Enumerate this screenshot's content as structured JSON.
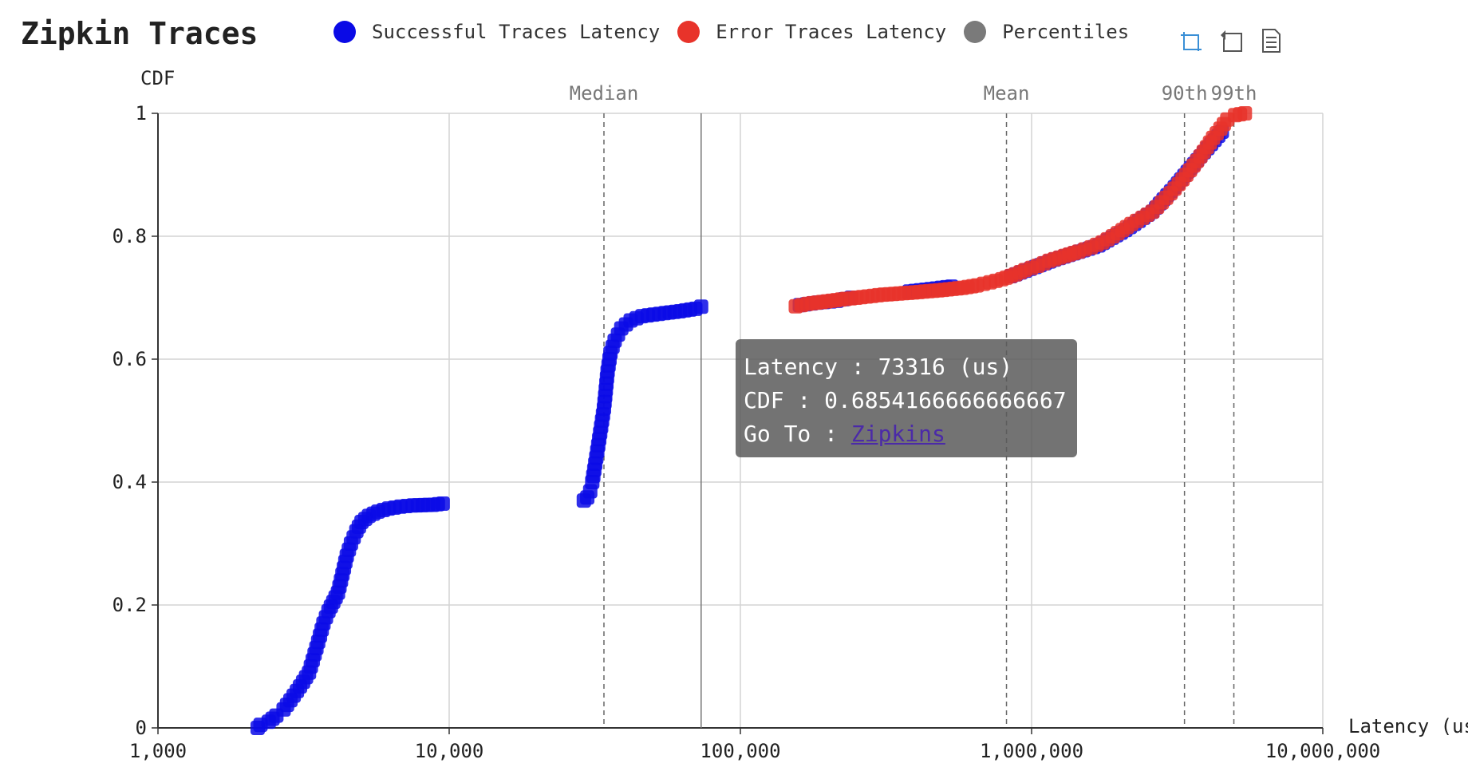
{
  "header": {
    "title": "Zipkin Traces"
  },
  "legend": [
    {
      "label": "Successful Traces Latency",
      "color": "#0a0ae6"
    },
    {
      "label": "Error Traces Latency",
      "color": "#e8332a"
    },
    {
      "label": "Percentiles",
      "color": "#7a7a7a"
    }
  ],
  "toolbox": [
    {
      "name": "zoom-icon",
      "color": "#3a8fd6"
    },
    {
      "name": "zoom-reset-icon",
      "color": "#555"
    },
    {
      "name": "data-view-icon",
      "color": "#555"
    }
  ],
  "tooltip": {
    "latency_label": "Latency : 73316 (us)",
    "cdf_label": "CDF : 0.6854166666666667",
    "goto_prefix": "Go To : ",
    "goto_link": "Zipkins"
  },
  "chart_data": {
    "type": "scatter",
    "xlabel": "Latency (us)",
    "ylabel": "CDF",
    "x_scale": "log",
    "xlim": [
      1000,
      10000000
    ],
    "ylim": [
      0,
      1
    ],
    "x_ticks": [
      {
        "value": 1000,
        "label": "1,000"
      },
      {
        "value": 10000,
        "label": "10,000"
      },
      {
        "value": 100000,
        "label": "100,000"
      },
      {
        "value": 1000000,
        "label": "1,000,000"
      },
      {
        "value": 10000000,
        "label": "10,000,000"
      }
    ],
    "y_ticks": [
      {
        "value": 0,
        "label": "0"
      },
      {
        "value": 0.2,
        "label": "0.2"
      },
      {
        "value": 0.4,
        "label": "0.4"
      },
      {
        "value": 0.6,
        "label": "0.6"
      },
      {
        "value": 0.8,
        "label": "0.8"
      },
      {
        "value": 1,
        "label": "1"
      }
    ],
    "grid": true,
    "percentiles": [
      {
        "label": "Median",
        "value": 34000
      },
      {
        "label": "Mean",
        "value": 820000
      },
      {
        "label": "90th",
        "value": 3350000
      },
      {
        "label": "99th",
        "value": 4950000
      }
    ],
    "crosshair_x": 73316,
    "series": [
      {
        "name": "Successful Traces Latency",
        "color": "#0a0ae6",
        "points": [
          [
            2200,
            0.0
          ],
          [
            2250,
            0.005
          ],
          [
            2400,
            0.01
          ],
          [
            2550,
            0.02
          ],
          [
            2700,
            0.03
          ],
          [
            2850,
            0.045
          ],
          [
            3000,
            0.06
          ],
          [
            3150,
            0.075
          ],
          [
            3300,
            0.09
          ],
          [
            3400,
            0.11
          ],
          [
            3500,
            0.13
          ],
          [
            3600,
            0.15
          ],
          [
            3700,
            0.17
          ],
          [
            3850,
            0.19
          ],
          [
            4000,
            0.205
          ],
          [
            4150,
            0.22
          ],
          [
            4250,
            0.24
          ],
          [
            4350,
            0.26
          ],
          [
            4450,
            0.28
          ],
          [
            4600,
            0.3
          ],
          [
            4800,
            0.32
          ],
          [
            5000,
            0.335
          ],
          [
            5300,
            0.345
          ],
          [
            5700,
            0.352
          ],
          [
            6200,
            0.357
          ],
          [
            6800,
            0.36
          ],
          [
            7500,
            0.362
          ],
          [
            8800,
            0.363
          ],
          [
            9500,
            0.365
          ],
          [
            29000,
            0.37
          ],
          [
            29800,
            0.375
          ],
          [
            30500,
            0.385
          ],
          [
            31000,
            0.4
          ],
          [
            31500,
            0.42
          ],
          [
            32000,
            0.44
          ],
          [
            32500,
            0.46
          ],
          [
            33000,
            0.48
          ],
          [
            33500,
            0.5
          ],
          [
            34000,
            0.52
          ],
          [
            34500,
            0.55
          ],
          [
            35000,
            0.58
          ],
          [
            35800,
            0.61
          ],
          [
            37000,
            0.63
          ],
          [
            39000,
            0.65
          ],
          [
            42000,
            0.663
          ],
          [
            46000,
            0.67
          ],
          [
            55000,
            0.675
          ],
          [
            62000,
            0.678
          ],
          [
            70000,
            0.682
          ],
          [
            73316,
            0.6854
          ],
          [
            160000,
            0.688
          ],
          [
            185000,
            0.692
          ],
          [
            215000,
            0.695
          ],
          [
            240000,
            0.7
          ],
          [
            380000,
            0.71
          ],
          [
            530000,
            0.718
          ],
          [
            850000,
            0.735
          ],
          [
            1200000,
            0.762
          ],
          [
            1700000,
            0.785
          ],
          [
            2100000,
            0.81
          ],
          [
            2600000,
            0.84
          ],
          [
            3100000,
            0.88
          ],
          [
            3800000,
            0.93
          ],
          [
            4500000,
            0.97
          ]
        ]
      },
      {
        "name": "Error Traces Latency",
        "color": "#e8332a",
        "points": [
          [
            155000,
            0.686
          ],
          [
            170000,
            0.69
          ],
          [
            230000,
            0.698
          ],
          [
            310000,
            0.705
          ],
          [
            380000,
            0.708
          ],
          [
            480000,
            0.712
          ],
          [
            580000,
            0.716
          ],
          [
            650000,
            0.72
          ],
          [
            720000,
            0.725
          ],
          [
            790000,
            0.73
          ],
          [
            880000,
            0.738
          ],
          [
            950000,
            0.745
          ],
          [
            1050000,
            0.752
          ],
          [
            1150000,
            0.76
          ],
          [
            1300000,
            0.768
          ],
          [
            1450000,
            0.775
          ],
          [
            1600000,
            0.782
          ],
          [
            1750000,
            0.79
          ],
          [
            1900000,
            0.8
          ],
          [
            2050000,
            0.81
          ],
          [
            2200000,
            0.82
          ],
          [
            2400000,
            0.83
          ],
          [
            2600000,
            0.84
          ],
          [
            2800000,
            0.855
          ],
          [
            3000000,
            0.87
          ],
          [
            3200000,
            0.885
          ],
          [
            3400000,
            0.9
          ],
          [
            3600000,
            0.915
          ],
          [
            3800000,
            0.93
          ],
          [
            4000000,
            0.945
          ],
          [
            4200000,
            0.96
          ],
          [
            4450000,
            0.975
          ],
          [
            4700000,
            0.99
          ],
          [
            5000000,
            0.997
          ],
          [
            5400000,
            1.0
          ]
        ]
      }
    ]
  }
}
